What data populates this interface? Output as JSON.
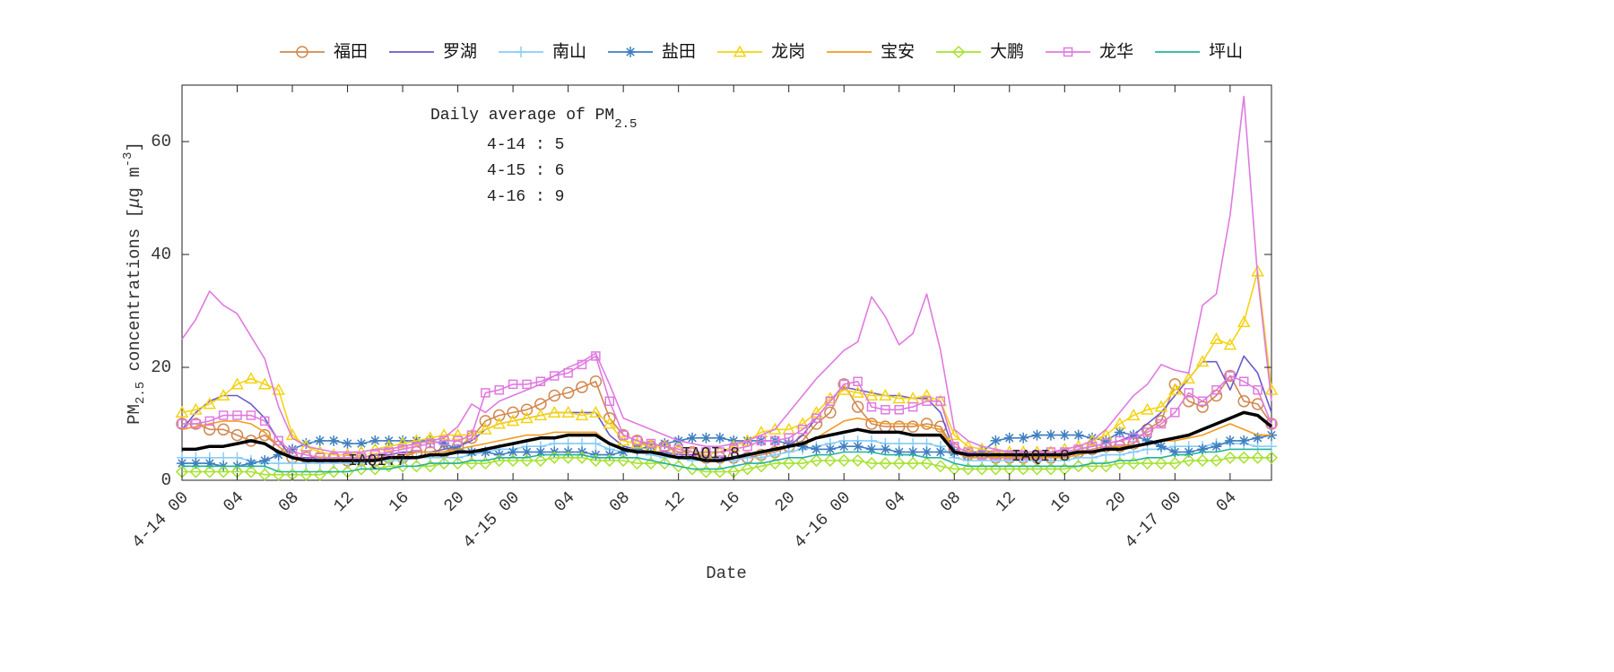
{
  "chart_data": {
    "type": "line",
    "categories": [
      "4-14 00",
      null,
      null,
      null,
      "04",
      null,
      null,
      null,
      "08",
      null,
      null,
      null,
      "12",
      null,
      null,
      null,
      "16",
      null,
      null,
      null,
      "20",
      null,
      null,
      null,
      "4-15 00",
      null,
      null,
      null,
      "04",
      null,
      null,
      null,
      "08",
      null,
      null,
      null,
      "12",
      null,
      null,
      null,
      "16",
      null,
      null,
      null,
      "20",
      null,
      null,
      null,
      "4-16 00",
      null,
      null,
      null,
      "04",
      null,
      null,
      null,
      "08",
      null,
      null,
      null,
      "12",
      null,
      null,
      null,
      "16",
      null,
      null,
      null,
      "20",
      null,
      null,
      null,
      "4-17 00",
      null,
      null,
      null,
      "04",
      null,
      null,
      null
    ],
    "ylim": [
      0,
      70
    ],
    "yticks": [
      0,
      20,
      40,
      60
    ],
    "xlabel": "Date",
    "ylabel": [
      "PM",
      "2.5",
      " concentrations [",
      "μ",
      "g m",
      "-3",
      "]"
    ],
    "legend": "top",
    "annotations": {
      "title": "Daily average of PM",
      "title_sub": "2.5",
      "lines": [
        "4-14 : 5",
        "4-15 : 6",
        "4-16 : 9"
      ],
      "iaqi": [
        "IAQI:7",
        "IAQI:8",
        "IAQI:8"
      ]
    },
    "series": [
      {
        "name": "福田",
        "color": "#d2884e",
        "marker": "circle",
        "values": [
          10,
          10,
          9,
          9,
          8,
          7,
          8,
          6,
          4,
          4,
          4,
          4,
          3.5,
          3.5,
          3.5,
          4,
          4,
          5,
          5,
          5,
          6,
          7.5,
          10.5,
          11.5,
          12,
          12.5,
          13.5,
          15,
          15.5,
          16.5,
          17.5,
          11,
          8,
          7,
          6,
          6,
          5,
          5,
          4,
          4,
          4,
          4,
          4.5,
          5,
          6,
          7,
          10,
          12,
          17,
          13,
          10,
          9.5,
          9.5,
          9.5,
          10,
          9.5,
          5.5,
          4.5,
          4.5,
          4,
          4,
          4,
          4,
          4,
          4.5,
          5,
          5.5,
          6,
          6,
          6.5,
          9,
          10.5,
          17,
          14,
          13,
          15,
          18.5,
          14,
          13.5,
          10
        ]
      },
      {
        "name": "罗湖",
        "color": "#6a5acd",
        "marker": "none",
        "values": [
          9,
          12,
          14,
          15,
          15,
          13.5,
          11,
          7,
          4,
          4,
          4,
          4,
          4,
          4,
          4.5,
          4.5,
          5,
          5,
          5,
          5.5,
          6,
          7,
          9,
          10,
          10.5,
          11,
          11.5,
          12,
          12,
          12,
          12,
          8,
          6,
          5.5,
          5,
          5,
          4.5,
          4.5,
          4,
          4,
          4,
          4.5,
          5,
          5.5,
          6,
          8,
          11,
          14,
          16.5,
          16,
          15.5,
          15,
          15,
          14.5,
          14.5,
          12,
          5,
          5,
          5,
          5,
          5,
          5,
          5,
          5,
          5,
          5.5,
          6,
          6.5,
          7,
          8,
          10,
          12,
          15,
          18,
          21,
          21,
          16,
          22,
          19,
          12
        ]
      },
      {
        "name": "南山",
        "color": "#87cefa",
        "marker": "plus",
        "values": [
          4,
          4,
          4,
          4,
          4,
          3.5,
          3,
          3,
          3,
          3,
          3,
          3,
          3,
          3,
          3.5,
          3.5,
          3.5,
          4,
          4,
          4,
          4,
          4.5,
          5,
          5.5,
          5.5,
          6,
          6,
          6.5,
          6.5,
          6.5,
          6.5,
          5.5,
          5,
          5,
          4.5,
          4,
          4,
          3.5,
          3.5,
          3.5,
          3.5,
          4,
          4,
          4.5,
          5,
          5.5,
          6,
          6.5,
          7,
          7,
          7,
          6.5,
          6.5,
          6.5,
          6.5,
          6,
          4,
          3.5,
          3.5,
          3.5,
          3.5,
          3.5,
          3.5,
          3.5,
          3.5,
          4,
          4,
          4.5,
          4.5,
          5,
          5.5,
          5.5,
          6,
          6,
          6,
          6.5,
          6.5,
          6.5,
          6,
          6
        ]
      },
      {
        "name": "盐田",
        "color": "#3f7fbf",
        "marker": "asterisk",
        "values": [
          3,
          3,
          3,
          2.5,
          2.5,
          3,
          3.5,
          4.5,
          5.5,
          6.5,
          7,
          7,
          6.5,
          6.5,
          7,
          7,
          7,
          7,
          7,
          6.5,
          5.5,
          5,
          5,
          4.5,
          5,
          5,
          5,
          5,
          5,
          5,
          4.5,
          4.5,
          5,
          5.5,
          6,
          6.5,
          7,
          7.5,
          7.5,
          7.5,
          7,
          7,
          7,
          7,
          6.5,
          6,
          5.5,
          5.5,
          6,
          6,
          5.5,
          5.5,
          5,
          5,
          5,
          5,
          5,
          4.5,
          5,
          7,
          7.5,
          7.5,
          8,
          8,
          8,
          8,
          7.5,
          7,
          8.5,
          8,
          7,
          6,
          5,
          5,
          5.5,
          6,
          7,
          7,
          7.5,
          8
        ]
      },
      {
        "name": "龙岗",
        "color": "#f5d312",
        "marker": "triangle",
        "values": [
          12,
          12.5,
          13.5,
          15,
          17,
          18,
          17,
          16,
          8,
          6,
          5,
          4.5,
          4.5,
          5,
          5.5,
          6,
          6.5,
          7,
          7.5,
          8,
          8,
          8,
          9,
          10,
          10.5,
          11,
          11.5,
          12,
          12,
          11.5,
          12,
          10,
          7,
          6.5,
          6,
          6,
          5.5,
          5,
          4.5,
          5,
          6,
          7,
          8.5,
          9,
          9,
          10,
          12,
          14.5,
          16,
          15.5,
          15,
          15,
          14.5,
          14.5,
          15,
          14,
          8,
          6,
          5.5,
          5,
          5,
          5,
          5,
          5,
          5.5,
          6,
          7,
          8,
          10,
          11.5,
          12.5,
          13,
          16,
          18,
          21,
          25,
          24,
          28,
          37,
          16
        ]
      },
      {
        "name": "宝安",
        "color": "#f39a1e",
        "marker": "none",
        "values": [
          9,
          9.5,
          10,
          10.5,
          10.5,
          10,
          8.5,
          6,
          4,
          3.5,
          3.5,
          3.5,
          3.5,
          3.5,
          4,
          4,
          4.5,
          5,
          5,
          5,
          5.5,
          6,
          6.5,
          7,
          7.5,
          8,
          8,
          8.5,
          8.5,
          8.5,
          8.5,
          6.5,
          5.5,
          5,
          5,
          4.5,
          4,
          4,
          3.5,
          3.5,
          4,
          4.5,
          5,
          5.5,
          6,
          6.5,
          7.5,
          9,
          10.5,
          11,
          10.5,
          10,
          10,
          10,
          9.5,
          9,
          5,
          4,
          4,
          4,
          4,
          4,
          4,
          4,
          4,
          4.5,
          5,
          5.5,
          6,
          6,
          6.5,
          7,
          7,
          7.5,
          8,
          9,
          10,
          9,
          8,
          8
        ]
      },
      {
        "name": "大鹏",
        "color": "#a6e22e",
        "marker": "diamond",
        "values": [
          1.5,
          1.5,
          1.5,
          1.5,
          1.5,
          1.5,
          1,
          1,
          1,
          1,
          1,
          1.5,
          1.5,
          2,
          2,
          2.5,
          2.5,
          2.5,
          2.5,
          3,
          3,
          3,
          3,
          3.5,
          3.5,
          3.5,
          3.5,
          4,
          4,
          4,
          3.5,
          3.5,
          3.5,
          3,
          3,
          3,
          2.5,
          2,
          1.5,
          1.5,
          1.5,
          2,
          2.5,
          3,
          3,
          3,
          3.5,
          3.5,
          3.5,
          3.5,
          3,
          3,
          3,
          3,
          3,
          2.5,
          2,
          2,
          2,
          2,
          2,
          2,
          2,
          2,
          2,
          2.5,
          2.5,
          2.5,
          3,
          3,
          3,
          3,
          3,
          3.5,
          3.5,
          3.5,
          4,
          4,
          4,
          4
        ]
      },
      {
        "name": "龙华",
        "color": "#e07ae0",
        "marker": "square",
        "values": [
          10,
          10,
          10.5,
          11.5,
          11.5,
          11.5,
          10.5,
          7,
          5,
          4.5,
          4,
          4,
          4,
          4,
          4.5,
          5,
          5.5,
          6,
          6.5,
          7,
          7,
          8,
          15.5,
          16,
          17,
          17,
          17.5,
          18.5,
          19,
          20.5,
          22,
          14,
          8,
          7,
          6.5,
          6,
          5.5,
          5,
          5,
          5,
          5.5,
          6,
          7,
          7,
          7.5,
          9,
          11,
          14,
          17,
          17.5,
          13,
          12.5,
          12.5,
          13,
          14,
          14,
          6,
          5,
          4.5,
          4.5,
          4.5,
          4.5,
          4.5,
          5,
          5,
          5.5,
          6,
          6.5,
          7,
          7.5,
          8.5,
          10,
          12,
          15.5,
          14,
          16,
          18.5,
          17.5,
          16,
          10
        ]
      },
      {
        "name": "坪山",
        "color": "#22b3a0",
        "marker": "none",
        "values": [
          2.5,
          2.5,
          2.5,
          2.5,
          2.5,
          2.5,
          2.5,
          1.5,
          1.5,
          1.5,
          1.5,
          1.5,
          1.5,
          2,
          2,
          2,
          2.5,
          2.5,
          3,
          3,
          3,
          3.5,
          3.5,
          4,
          4,
          4,
          4.5,
          4.5,
          4.5,
          4.5,
          4,
          4,
          4,
          4,
          3.5,
          3,
          2.5,
          2,
          2,
          2,
          2.5,
          3,
          3,
          3.5,
          4,
          4,
          4.5,
          4.5,
          5,
          5,
          5,
          4.5,
          4.5,
          4.5,
          4,
          4,
          3,
          2.5,
          2.5,
          2.5,
          2.5,
          2.5,
          2.5,
          2.5,
          2.5,
          2.5,
          3,
          3,
          3.5,
          3.5,
          4,
          4,
          4.5,
          4.5,
          5,
          5,
          5.5,
          5.5,
          5.5,
          5.5
        ]
      },
      {
        "color": "#e07ae0",
        "marker": "none",
        "values": [
          25,
          28.5,
          33.5,
          31,
          29.5,
          25.5,
          21.5,
          13,
          7.5,
          6,
          5.5,
          5,
          5,
          5,
          5.5,
          5.5,
          6,
          6.5,
          7,
          7.5,
          9.5,
          13.5,
          12,
          14,
          15,
          16,
          17,
          18.5,
          20,
          21,
          22.5,
          17,
          11,
          10,
          9,
          8,
          7,
          6.5,
          6,
          6,
          6.5,
          7,
          8,
          9,
          12,
          15,
          18,
          20.5,
          23,
          24.5,
          32.5,
          29,
          24,
          26,
          33,
          23,
          9,
          7,
          6,
          5.5,
          5,
          5,
          5,
          5,
          5.5,
          6,
          7,
          9,
          12,
          15,
          17,
          20.5,
          19.5,
          19,
          31,
          33,
          47,
          68,
          36,
          14
        ]
      },
      {
        "color": "#000000",
        "marker": "none",
        "line_width": 3.5,
        "values": [
          5.5,
          5.5,
          6,
          6,
          6.5,
          7,
          6.5,
          5,
          4,
          3.5,
          3.5,
          3.5,
          3.5,
          3.5,
          3.5,
          4,
          4,
          4,
          4.5,
          4.5,
          5,
          5,
          5.5,
          6,
          6.5,
          7,
          7.5,
          7.5,
          8,
          8,
          8,
          6.5,
          5.5,
          5,
          5,
          4.5,
          4,
          4,
          3.5,
          3.5,
          4,
          4.5,
          5,
          5.5,
          6,
          6.5,
          7.5,
          8,
          8.5,
          9,
          8.5,
          8.5,
          8.5,
          8,
          8,
          8,
          5,
          4.5,
          4.5,
          4.5,
          4.5,
          4.5,
          4.5,
          4.5,
          4.5,
          5,
          5,
          5.5,
          5.5,
          6,
          6.5,
          7,
          7.5,
          8,
          9,
          10,
          11,
          12,
          11.5,
          9.5
        ]
      }
    ]
  }
}
